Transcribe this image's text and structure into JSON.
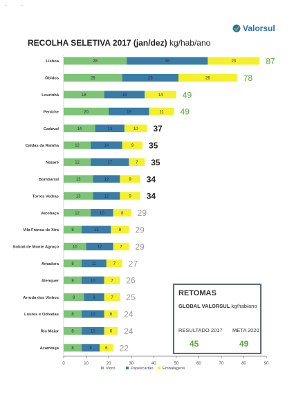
{
  "scan_marks": [
    "-",
    "-"
  ],
  "logo": {
    "text": "Valorsul",
    "colors": {
      "blue": "#2a6fb4",
      "green": "#7dbb42"
    }
  },
  "title": {
    "bold": "RECOLHA SELETIVA 2017 (jan/dez)",
    "unit": "kg/hab/ano"
  },
  "colors": {
    "vidro": "#7cc576",
    "papel": "#3a7ca5",
    "embalagens": "#f4f12a",
    "total_high": "#5aaa3a",
    "total_mid": "#222222",
    "total_low": "#999999"
  },
  "chart_data": {
    "type": "bar",
    "orientation": "horizontal",
    "stacked": true,
    "title": "RECOLHA SELETIVA 2017 (jan/dez) kg/hab/ano",
    "categories": [
      "Lisboa",
      "Óbidos",
      "Lourinhã",
      "Peniche",
      "Cadaval",
      "Caldas da Rainha",
      "Nazaré",
      "Bombarral",
      "Torres Vedras",
      "Alcobaça",
      "Vila Franca de Xira",
      "Sobral de Monte Agraço",
      "Amadora",
      "Alenquer",
      "Arruda dos Vinhos",
      "Loures e Odivelas",
      "Rio Maior",
      "Azambuja"
    ],
    "series": [
      {
        "name": "Vidro",
        "color": "#7cc576",
        "values": [
          28,
          26,
          18,
          20,
          14,
          12,
          12,
          13,
          13,
          12,
          8,
          10,
          8,
          8,
          9,
          8,
          8,
          8
        ]
      },
      {
        "name": "Papel/cartão",
        "color": "#3a7ca5",
        "values": [
          36,
          25,
          18,
          18,
          13,
          14,
          17,
          12,
          12,
          10,
          13,
          12,
          11,
          10,
          9,
          10,
          10,
          8
        ]
      },
      {
        "name": "Embalagens",
        "color": "#f4f12a",
        "values": [
          23,
          26,
          14,
          11,
          10,
          9,
          7,
          9,
          9,
          8,
          8,
          7,
          7,
          7,
          7,
          6,
          6,
          6
        ]
      }
    ],
    "totals": [
      87,
      78,
      49,
      49,
      37,
      35,
      35,
      34,
      34,
      29,
      29,
      29,
      27,
      26,
      25,
      24,
      24,
      22
    ],
    "xlim": [
      0,
      90
    ],
    "xticks": [
      0,
      10,
      20,
      30,
      40,
      50,
      60,
      70,
      80,
      90
    ],
    "legend": {
      "position": "bottom",
      "entries": [
        "Vidro",
        "Papel/cartão",
        "Embalagens"
      ]
    }
  },
  "retomas": {
    "title": "RETOMAS",
    "subtitle_bold": "GLOBAL VALORSUL",
    "subtitle_unit": "kg/hab/ano",
    "resultado_label": "RESULTADO 2017",
    "resultado_value": "45",
    "meta_label": "META 2020",
    "meta_value": "49"
  }
}
